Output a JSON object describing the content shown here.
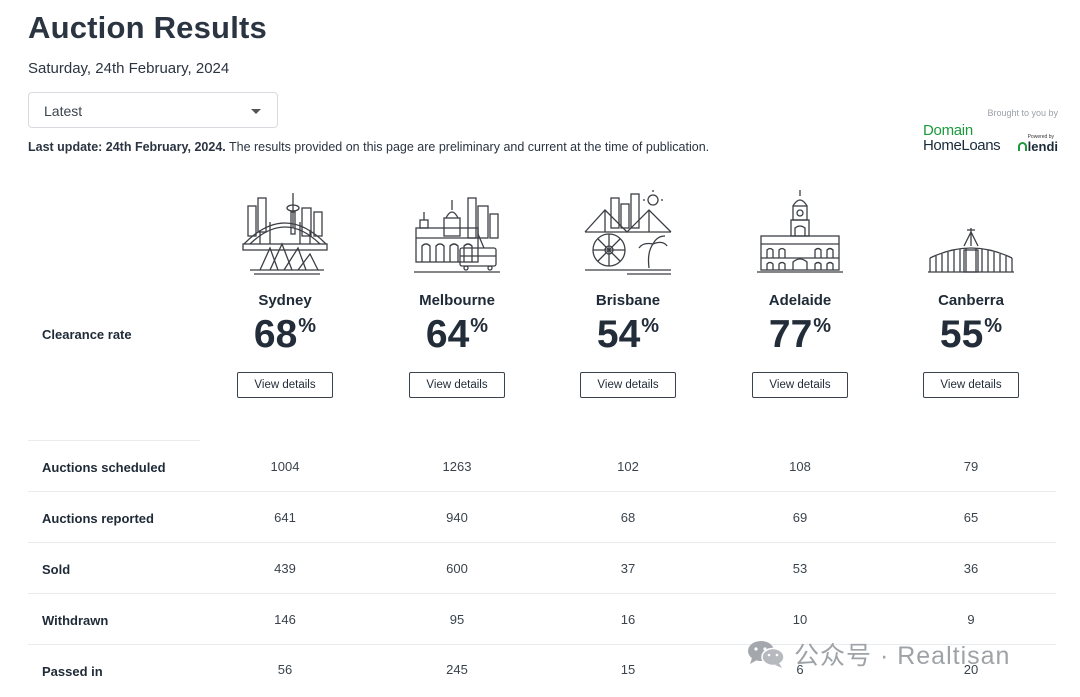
{
  "header": {
    "title": "Auction Results",
    "date": "Saturday, 24th February, 2024"
  },
  "filter": {
    "selected": "Latest"
  },
  "notice": {
    "bold": "Last update: 24th February, 2024.",
    "text": " The results provided on this page are preliminary and current at the time of publication."
  },
  "sponsor": {
    "brought": "Brought to you by",
    "line1": "Domain",
    "line2": "HomeLoans",
    "powered": "Powered by",
    "partner": "lendi"
  },
  "labels": {
    "clearance": "Clearance rate",
    "percent_sign": "%"
  },
  "cities": [
    {
      "name": "Sydney",
      "rate": "68",
      "icon": "sydney-skyline-icon",
      "button": "View details"
    },
    {
      "name": "Melbourne",
      "rate": "64",
      "icon": "melbourne-skyline-icon",
      "button": "View details"
    },
    {
      "name": "Brisbane",
      "rate": "54",
      "icon": "brisbane-skyline-icon",
      "button": "View details"
    },
    {
      "name": "Adelaide",
      "rate": "77",
      "icon": "adelaide-building-icon",
      "button": "View details"
    },
    {
      "name": "Canberra",
      "rate": "55",
      "icon": "canberra-parliament-icon",
      "button": "View details"
    }
  ],
  "table": {
    "rows": [
      {
        "label": "Auctions scheduled",
        "values": [
          "1004",
          "1263",
          "102",
          "108",
          "79"
        ]
      },
      {
        "label": "Auctions reported",
        "values": [
          "641",
          "940",
          "68",
          "69",
          "65"
        ]
      },
      {
        "label": "Sold",
        "values": [
          "439",
          "600",
          "37",
          "53",
          "36"
        ]
      },
      {
        "label": "Withdrawn",
        "values": [
          "146",
          "95",
          "16",
          "10",
          "9"
        ]
      },
      {
        "label": "Passed in",
        "values": [
          "56",
          "245",
          "15",
          "6",
          "20"
        ]
      }
    ]
  },
  "watermark": {
    "text": "公众号 · Realtisan"
  },
  "colors": {
    "brand_green": "#1c9a3c",
    "text_dark": "#1f2a37",
    "divider": "#e9ecef"
  }
}
